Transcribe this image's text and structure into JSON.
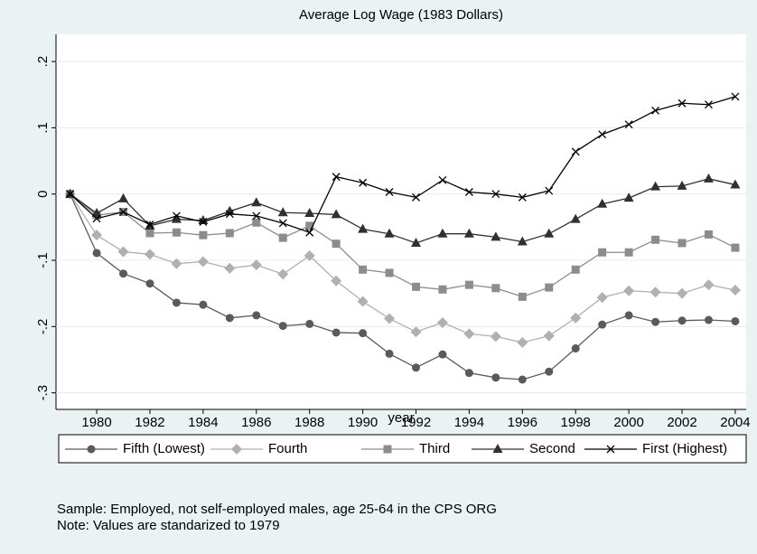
{
  "chart_data": {
    "type": "line",
    "title": "Average Log Wage (1983 Dollars)",
    "x_label": "year",
    "x": [
      1979,
      1980,
      1981,
      1982,
      1983,
      1984,
      1985,
      1986,
      1987,
      1988,
      1989,
      1990,
      1991,
      1992,
      1993,
      1994,
      1995,
      1996,
      1997,
      1998,
      1999,
      2000,
      2001,
      2002,
      2003,
      2004
    ],
    "series": [
      {
        "name": "Fifth (Lowest)",
        "color": "#5a5a5a",
        "marker": "circle",
        "values": [
          0,
          -0.089,
          -0.12,
          -0.135,
          -0.164,
          -0.167,
          -0.187,
          -0.183,
          -0.199,
          -0.196,
          -0.209,
          -0.21,
          -0.241,
          -0.262,
          -0.242,
          -0.27,
          -0.277,
          -0.28,
          -0.268,
          -0.233,
          -0.197,
          -0.183,
          -0.193,
          -0.191,
          -0.19,
          -0.192
        ]
      },
      {
        "name": "Fourth",
        "color": "#b0b0b0",
        "marker": "diamond",
        "values": [
          0,
          -0.062,
          -0.087,
          -0.091,
          -0.105,
          -0.102,
          -0.112,
          -0.107,
          -0.121,
          -0.093,
          -0.131,
          -0.162,
          -0.188,
          -0.208,
          -0.194,
          -0.211,
          -0.215,
          -0.224,
          -0.214,
          -0.187,
          -0.156,
          -0.146,
          -0.148,
          -0.15,
          -0.137,
          -0.145
        ]
      },
      {
        "name": "Third",
        "color": "#8c8c8c",
        "marker": "square",
        "values": [
          0,
          -0.032,
          -0.027,
          -0.059,
          -0.058,
          -0.062,
          -0.059,
          -0.043,
          -0.066,
          -0.048,
          -0.075,
          -0.114,
          -0.119,
          -0.14,
          -0.144,
          -0.137,
          -0.142,
          -0.155,
          -0.141,
          -0.114,
          -0.088,
          -0.088,
          -0.069,
          -0.074,
          -0.061,
          -0.081
        ]
      },
      {
        "name": "Second",
        "color": "#303030",
        "marker": "triangle",
        "values": [
          0,
          -0.029,
          -0.007,
          -0.048,
          -0.038,
          -0.04,
          -0.026,
          -0.013,
          -0.028,
          -0.029,
          -0.031,
          -0.053,
          -0.06,
          -0.074,
          -0.06,
          -0.06,
          -0.065,
          -0.072,
          -0.06,
          -0.038,
          -0.015,
          -0.006,
          0.011,
          0.012,
          0.023,
          0.014
        ]
      },
      {
        "name": "First (Highest)",
        "color": "#000000",
        "marker": "x",
        "values": [
          0,
          -0.037,
          -0.027,
          -0.046,
          -0.033,
          -0.042,
          -0.03,
          -0.033,
          -0.044,
          -0.058,
          0.026,
          0.017,
          0.003,
          -0.005,
          0.021,
          0.003,
          0.0,
          -0.005,
          0.005,
          0.064,
          0.09,
          0.105,
          0.126,
          0.137,
          0.135,
          0.147
        ]
      }
    ],
    "xlim": [
      1978.47,
      2004.41
    ],
    "xticks": [
      1980,
      1982,
      1984,
      1986,
      1988,
      1990,
      1992,
      1994,
      1996,
      1998,
      2000,
      2002,
      2004
    ],
    "ylim": [
      -0.325,
      0.241
    ],
    "yticks": [
      {
        "value": 0.2,
        "label": ".2"
      },
      {
        "value": 0.1,
        "label": ".1"
      },
      0,
      {
        "value": -0.1,
        "label": "-.1"
      },
      {
        "value": -0.2,
        "label": "-.2"
      },
      {
        "value": -0.3,
        "label": "-.3"
      }
    ],
    "grid": true,
    "notes": [
      "Sample: Employed, not self-employed males, age 25-64 in the CPS ORG",
      "Note: Values are standarized to 1979"
    ]
  }
}
